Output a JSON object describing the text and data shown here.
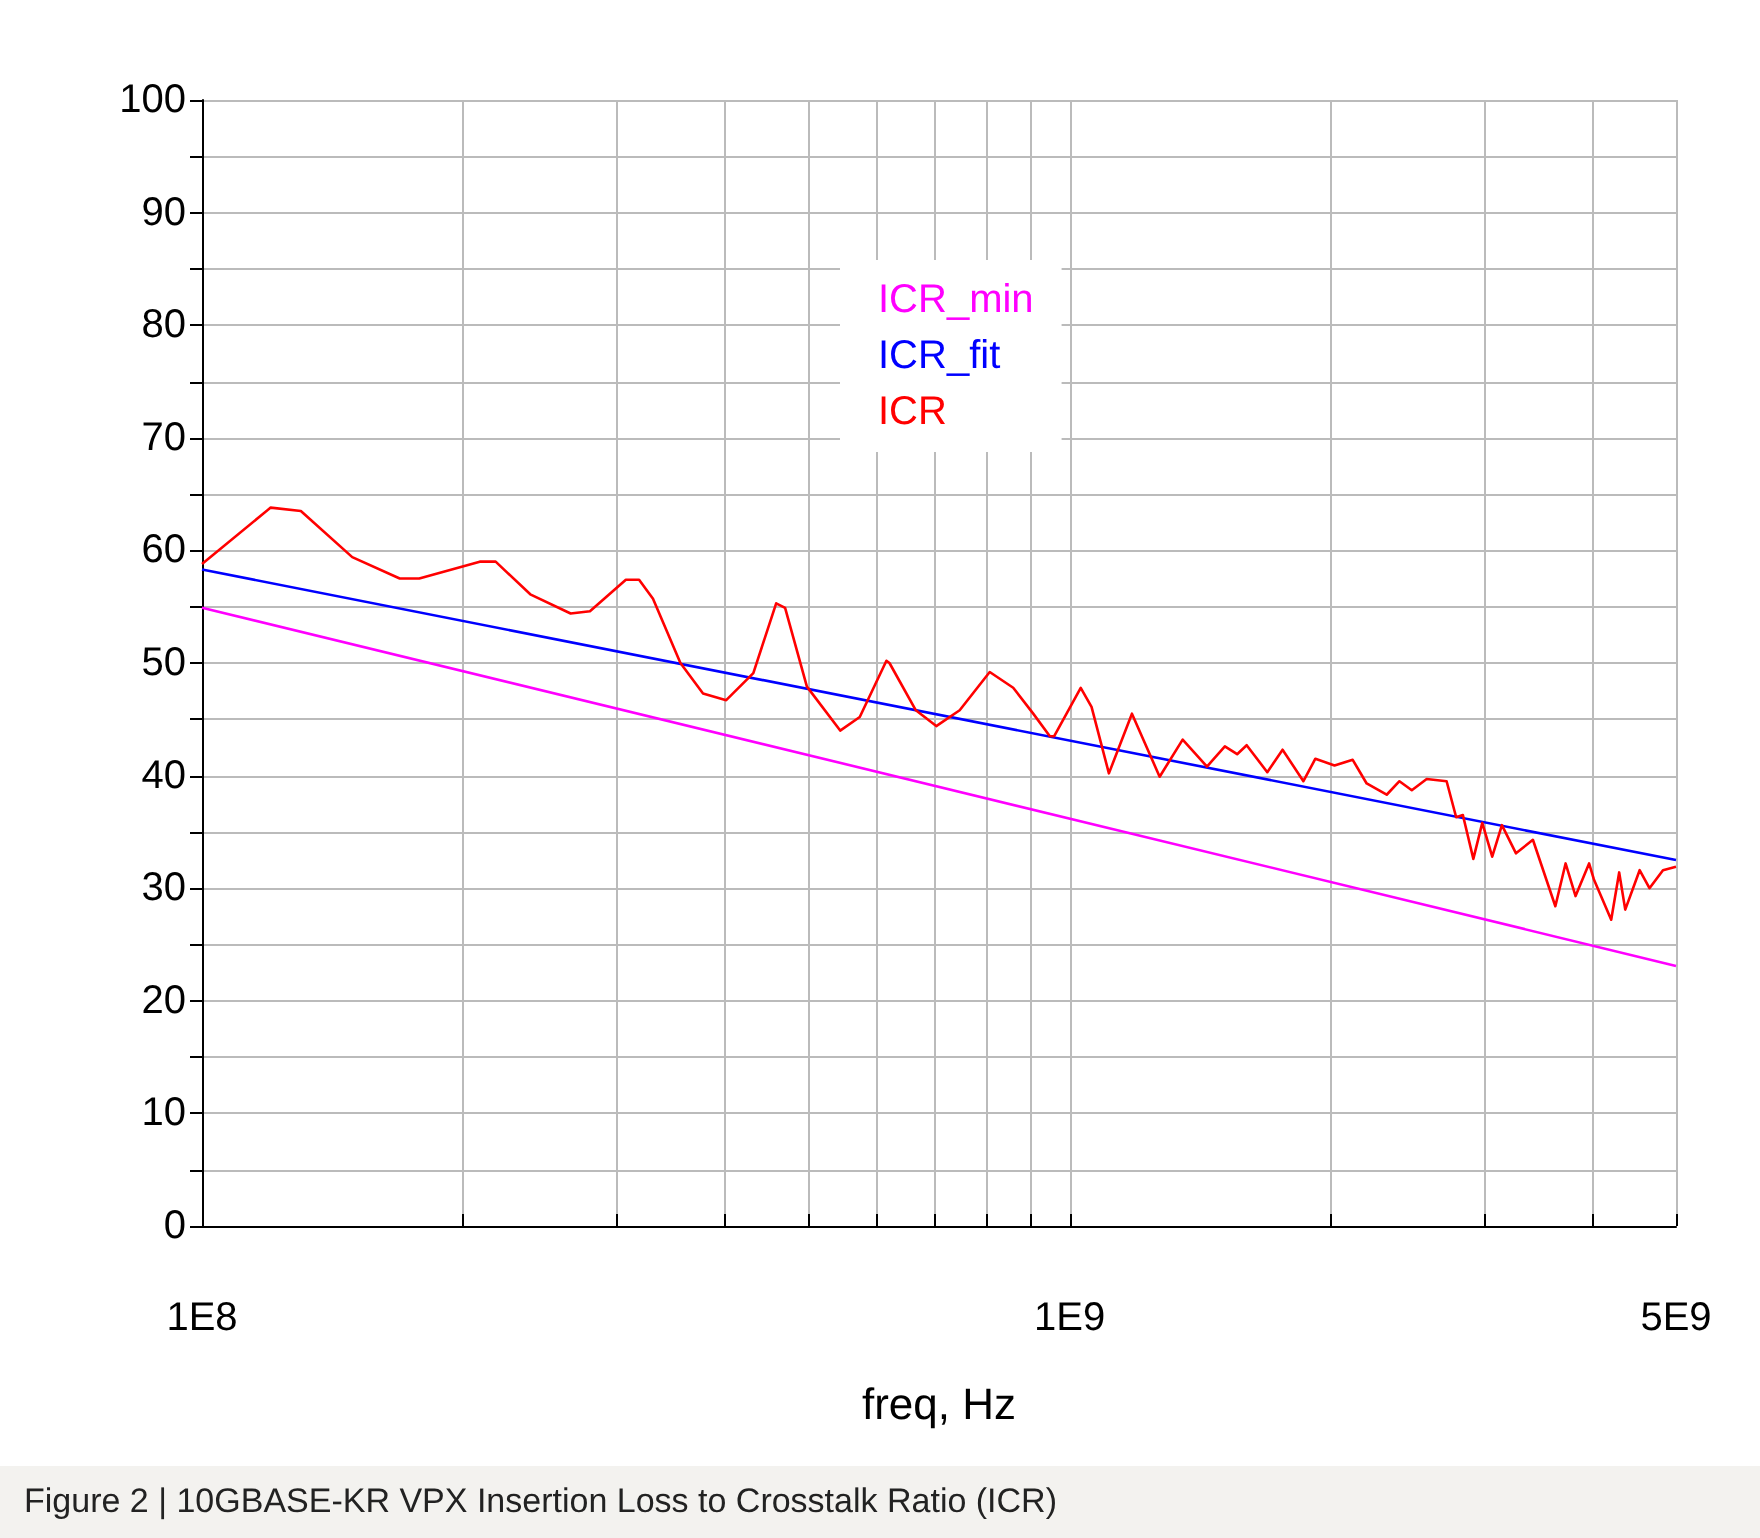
{
  "chart_data": {
    "type": "line",
    "xlabel": "freq, Hz",
    "annotations": [
      "Figure 2 | 10GBASE-KR VPX Insertion Loss to Crosstalk Ratio (ICR)"
    ],
    "log": "x",
    "xlim": [
      100000000,
      5000000000
    ],
    "ylim": [
      0,
      100
    ],
    "xticks": [
      {
        "value": 100000000,
        "label": "1E8"
      },
      {
        "value": 200000000,
        "label": null
      },
      {
        "value": 300000000,
        "label": null
      },
      {
        "value": 400000000,
        "label": null
      },
      {
        "value": 500000000,
        "label": null
      },
      {
        "value": 600000000,
        "label": null
      },
      {
        "value": 700000000,
        "label": null
      },
      {
        "value": 800000000,
        "label": null
      },
      {
        "value": 900000000,
        "label": null
      },
      {
        "value": 1000000000,
        "label": "1E9"
      },
      {
        "value": 2000000000,
        "label": null
      },
      {
        "value": 3000000000,
        "label": null
      },
      {
        "value": 4000000000,
        "label": null
      },
      {
        "value": 5000000000,
        "label": "5E9"
      }
    ],
    "yticks": [
      0,
      10,
      20,
      30,
      40,
      50,
      60,
      70,
      80,
      90,
      100
    ],
    "grid": true,
    "legend": "top",
    "marker": "none",
    "line_style": "solid",
    "series": [
      {
        "name": "ICR_min",
        "color": "#ff00ff",
        "x": [
          100000000,
          5000000000
        ],
        "values": [
          54.9,
          23.1
        ]
      },
      {
        "name": "ICR_fit",
        "color": "#0000ff",
        "x": [
          100000000,
          5000000000
        ],
        "values": [
          58.3,
          32.5
        ]
      },
      {
        "name": "ICR",
        "color": "#ff0000",
        "x": [
          100000000,
          120000000,
          130000000,
          149000000,
          169000000,
          178000000,
          209000000,
          218000000,
          239000000,
          266000000,
          280000000,
          308000000,
          319000000,
          331000000,
          356000000,
          378000000,
          402000000,
          432000000,
          459000000,
          470000000,
          498000000,
          544000000,
          573000000,
          615000000,
          620000000,
          665000000,
          702000000,
          747000000,
          809000000,
          861000000,
          908000000,
          949000000,
          960000000,
          1030000000,
          1060000000,
          1110000000,
          1180000000,
          1270000000,
          1350000000,
          1440000000,
          1510000000,
          1560000000,
          1600000000,
          1690000000,
          1760000000,
          1860000000,
          1920000000,
          2020000000,
          2120000000,
          2200000000,
          2320000000,
          2400000000,
          2480000000,
          2580000000,
          2720000000,
          2790000000,
          2840000000,
          2920000000,
          2990000000,
          3070000000,
          3150000000,
          3270000000,
          3420000000,
          3630000000,
          3730000000,
          3830000000,
          3970000000,
          4020000000,
          4210000000,
          4300000000,
          4370000000,
          4540000000,
          4660000000,
          4830000000,
          5000000000
        ],
        "values": [
          58.8,
          63.8,
          63.5,
          59.4,
          57.5,
          57.5,
          59.0,
          59.0,
          56.1,
          54.4,
          54.6,
          57.4,
          57.4,
          55.7,
          50.0,
          47.3,
          46.7,
          49.1,
          55.3,
          54.9,
          47.9,
          44.0,
          45.2,
          50.2,
          50.0,
          45.8,
          44.4,
          45.8,
          49.2,
          47.8,
          45.5,
          43.5,
          43.5,
          47.8,
          46.1,
          40.2,
          45.5,
          39.9,
          43.2,
          40.8,
          42.6,
          41.9,
          42.7,
          40.3,
          42.3,
          39.5,
          41.5,
          40.9,
          41.4,
          39.3,
          38.3,
          39.5,
          38.7,
          39.7,
          39.5,
          36.3,
          36.5,
          32.6,
          35.8,
          32.8,
          35.6,
          33.1,
          34.3,
          28.4,
          32.2,
          29.3,
          32.2,
          30.8,
          27.2,
          31.4,
          28.1,
          31.6,
          30.0,
          31.6,
          31.9
        ]
      }
    ]
  }
}
